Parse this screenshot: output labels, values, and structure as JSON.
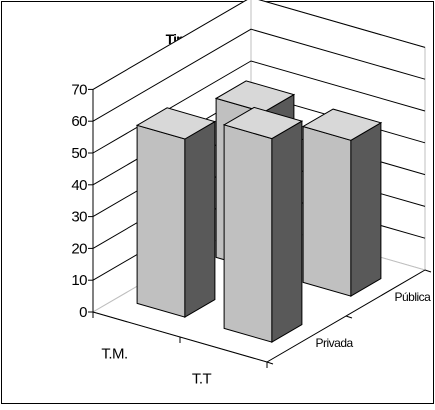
{
  "chart_data": {
    "type": "bar",
    "title": "Tipo de escuela",
    "categories": [
      "T.M.",
      "T.T"
    ],
    "series": [
      {
        "name": "Privada",
        "values": [
          56,
          64
        ]
      },
      {
        "name": "Pública",
        "values": [
          50,
          49
        ]
      }
    ],
    "yticks": [
      0,
      10,
      20,
      30,
      40,
      50,
      60,
      70
    ],
    "ylim": [
      0,
      70
    ],
    "grid": true,
    "colors": {
      "bar_front": "#c0c0c0",
      "bar_side": "#595959",
      "bar_top": "#d8d8d8",
      "wall": "#ffffff",
      "line": "#000000",
      "frame": "#bfbfbf"
    }
  }
}
